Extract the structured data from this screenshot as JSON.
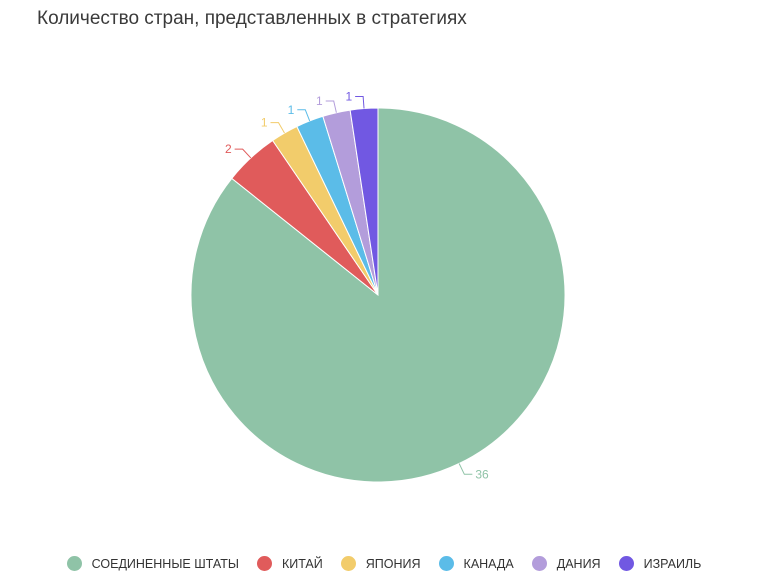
{
  "chart_data": {
    "type": "pie",
    "title": "Количество стран, представленных в стратегиях",
    "start_angle_deg": 0,
    "direction": "clockwise",
    "slices": [
      {
        "label": "СОЕДИНЕННЫЕ ШТАТЫ",
        "value": 36,
        "color": "#8fc3a7"
      },
      {
        "label": "КИТАЙ",
        "value": 2,
        "color": "#e05b5b"
      },
      {
        "label": "ЯПОНИЯ",
        "value": 1,
        "color": "#f2cc6b"
      },
      {
        "label": "КАНАДА",
        "value": 1,
        "color": "#5bbce8"
      },
      {
        "label": "ДАНИЯ",
        "value": 1,
        "color": "#b39ddb"
      },
      {
        "label": "ИЗРАИЛЬ",
        "value": 1,
        "color": "#7158e2"
      }
    ],
    "legend_position": "bottom"
  }
}
